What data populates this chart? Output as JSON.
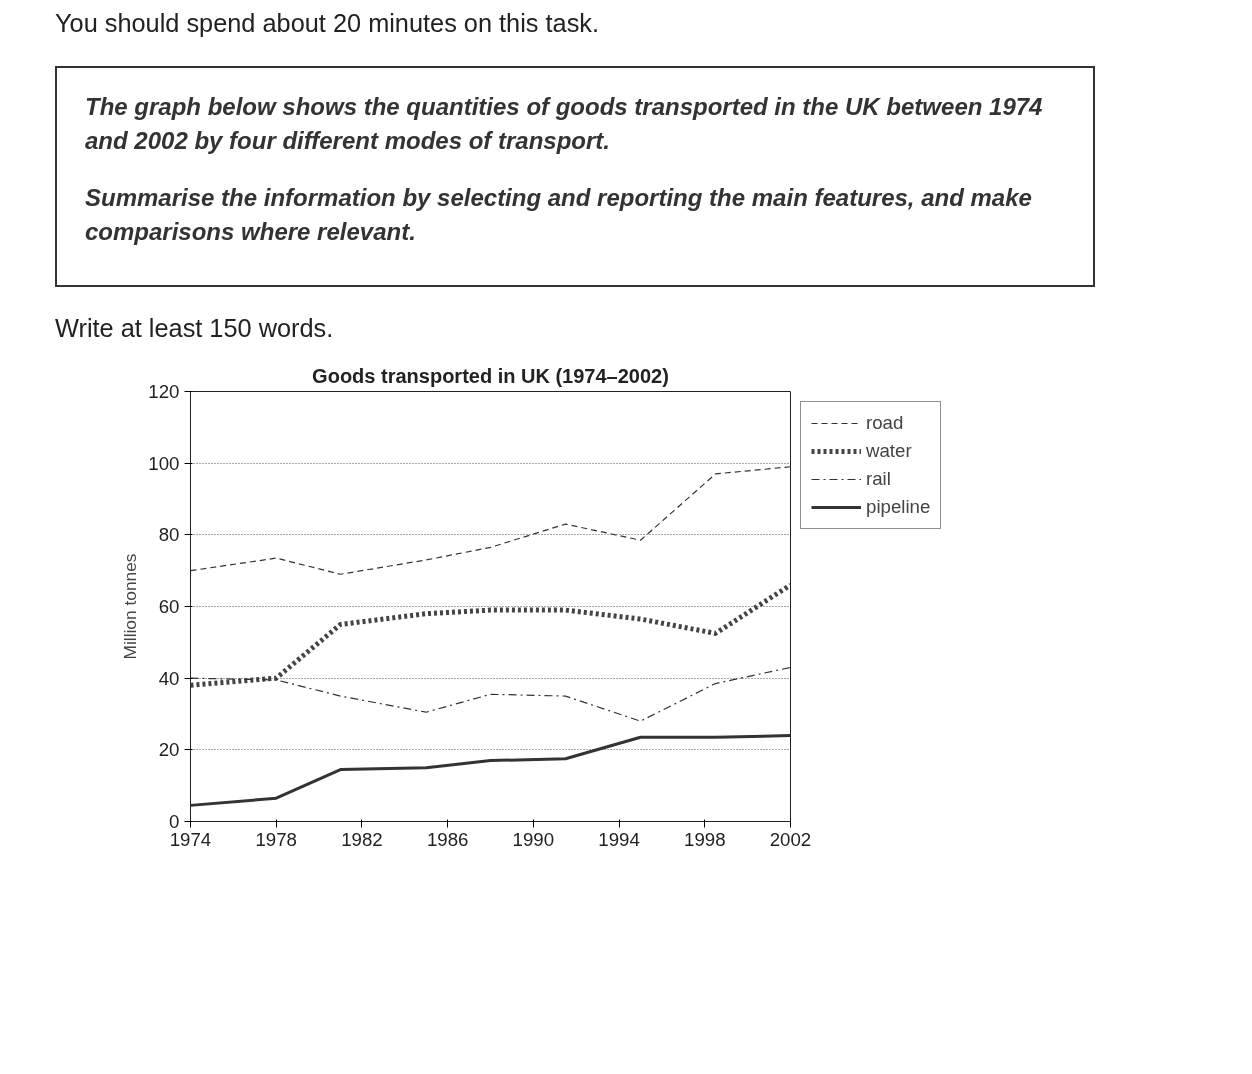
{
  "chart_data": {
    "type": "line",
    "title": "Goods transported in UK (1974–2002)",
    "ylabel": "Million tonnes",
    "annotations": [
      "You should spend about 20 minutes on this task.",
      "The graph below shows the quantities of goods transported in the UK between 1974 and 2002 by four different modes of transport.",
      "Summarise the information by selecting and reporting the main features, and make comparisons where relevant.",
      "Write at least 150 words."
    ],
    "x": [
      1974,
      1978,
      1981,
      1985,
      1988,
      1991.5,
      1995,
      1998.5,
      2002
    ],
    "series": [
      {
        "name": "road",
        "color": "#333333",
        "line_style": "dashed",
        "values": [
          70,
          73.5,
          69,
          73,
          76.5,
          83,
          78.5,
          97,
          99
        ]
      },
      {
        "name": "water",
        "color": "#444444",
        "line_style": "dotted",
        "values": [
          38,
          40,
          55,
          58,
          59,
          59,
          56.5,
          52.5,
          66
        ]
      },
      {
        "name": "rail",
        "color": "#333333",
        "line_style": "dashdot",
        "values": [
          40,
          39.5,
          35,
          30.5,
          35.5,
          35,
          28,
          38.5,
          43
        ]
      },
      {
        "name": "pipeline",
        "color": "#333333",
        "line_style": "solid",
        "values": [
          4.5,
          6.5,
          14.5,
          15,
          17,
          17.5,
          23.5,
          23.5,
          24
        ]
      }
    ],
    "xlim": [
      1974,
      2002
    ],
    "xticks": [
      1974,
      1978,
      1982,
      1986,
      1990,
      1994,
      1998,
      2002
    ],
    "ylim": [
      0,
      120
    ],
    "yticks": [
      0,
      20,
      40,
      60,
      80,
      100,
      120
    ],
    "grid": "y",
    "legend": "top right",
    "marker": "none"
  }
}
